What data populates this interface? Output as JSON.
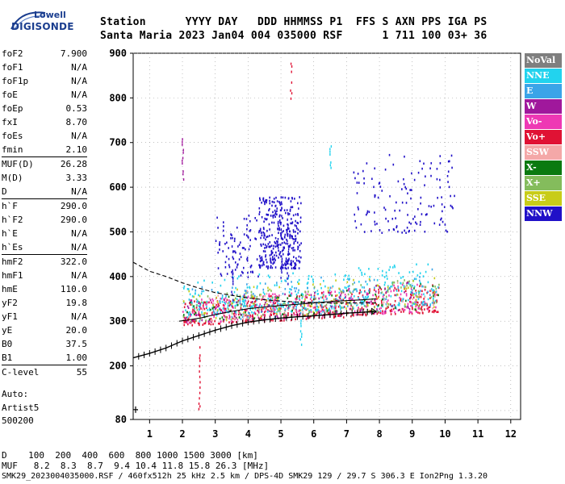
{
  "logo": {
    "line1": "Lowell",
    "line2": "DIGISONDE"
  },
  "header": {
    "row1": "Station      YYYY DAY   DDD HHMMSS P1  FFS S AXN PPS IGA PS",
    "row2": "Santa Maria 2023 Jan04 004 035000 RSF      1 711 100 03+ 36"
  },
  "params": [
    {
      "label": "foF2",
      "value": "7.900"
    },
    {
      "label": "foF1",
      "value": "N/A"
    },
    {
      "label": "foF1p",
      "value": "N/A"
    },
    {
      "label": "foE",
      "value": "N/A"
    },
    {
      "label": "foEp",
      "value": "0.53"
    },
    {
      "label": "fxI",
      "value": "8.70"
    },
    {
      "label": "foEs",
      "value": "N/A"
    },
    {
      "label": "fmin",
      "value": "2.10"
    },
    {
      "label": "MUF(D)",
      "value": "26.28",
      "sep": true
    },
    {
      "label": "M(D)",
      "value": "3.33"
    },
    {
      "label": "D",
      "value": "N/A"
    },
    {
      "label": "h`F",
      "value": "290.0",
      "sep": true
    },
    {
      "label": "h`F2",
      "value": "290.0"
    },
    {
      "label": "h`E",
      "value": "N/A"
    },
    {
      "label": "h`Es",
      "value": "N/A"
    },
    {
      "label": "hmF2",
      "value": "322.0",
      "sep": true
    },
    {
      "label": "hmF1",
      "value": "N/A"
    },
    {
      "label": "hmE",
      "value": "110.0"
    },
    {
      "label": "yF2",
      "value": "19.8"
    },
    {
      "label": "yF1",
      "value": "N/A"
    },
    {
      "label": "yE",
      "value": "20.0"
    },
    {
      "label": "B0",
      "value": "37.5"
    },
    {
      "label": "B1",
      "value": "1.00"
    },
    {
      "label": "C-level",
      "value": "55",
      "sep": true
    }
  ],
  "auto": {
    "label": "Auto:",
    "system": "Artist5",
    "version": "500200"
  },
  "legend": [
    {
      "label": "NoVal",
      "color": "#7f7f7f"
    },
    {
      "label": "NNE",
      "color": "#22d3ee"
    },
    {
      "label": "E",
      "color": "#3ba4e8"
    },
    {
      "label": "W",
      "color": "#a0189c"
    },
    {
      "label": "Vo-",
      "color": "#ee38b4"
    },
    {
      "label": "Vo+",
      "color": "#e01234"
    },
    {
      "label": "SSW",
      "color": "#f4a8a8"
    },
    {
      "label": "X-",
      "color": "#0a7a10"
    },
    {
      "label": "X+",
      "color": "#84bc5c"
    },
    {
      "label": "SSE",
      "color": "#c8cc18"
    },
    {
      "label": "NNW",
      "color": "#2010c8"
    }
  ],
  "footer": {
    "row1": "D    100  200  400  600  800 1000 1500 3000 [km]",
    "row2": "MUF   8.2  8.3  8.7  9.4 10.4 11.8 15.8 26.3 [MHz]",
    "row3": "SMK29_2023004035000.RSF / 460fx512h 25 kHz 2.5 km / DPS-4D SMK29 129 / 29.7 S 306.3 E Ion2Png 1.3.20"
  },
  "chart_data": {
    "type": "scatter",
    "xlabel": "",
    "ylabel": "",
    "xlim": [
      0.5,
      12.3
    ],
    "ylim": [
      80,
      900
    ],
    "x_ticks": [
      1,
      2,
      3,
      4,
      5,
      6,
      7,
      8,
      9,
      10,
      11,
      12
    ],
    "y_ticks": [
      100,
      200,
      300,
      400,
      500,
      600,
      700,
      800,
      900
    ],
    "y_tick_labels_shown": [
      80,
      200,
      300,
      400,
      500,
      600,
      700,
      800,
      900
    ],
    "profile_curve": {
      "x": [
        0.5,
        1.0,
        1.5,
        2.0,
        2.5,
        3.0,
        3.5,
        4.0,
        4.5,
        5.0,
        5.5,
        6.0,
        6.5,
        7.0,
        7.5,
        7.9
      ],
      "y": [
        218,
        228,
        240,
        256,
        268,
        280,
        290,
        298,
        303,
        307,
        310,
        312,
        315,
        318,
        320,
        322
      ]
    },
    "dashed_curve": {
      "x": [
        0.5,
        1.0,
        1.5,
        2.0,
        2.5,
        3.0,
        3.5,
        4.0,
        4.5,
        5.0,
        5.5,
        6.0,
        6.5,
        7.0,
        7.5,
        7.9
      ],
      "y": [
        432,
        412,
        400,
        386,
        374,
        364,
        358,
        352,
        348,
        345,
        343,
        342,
        341,
        341,
        341,
        341
      ]
    },
    "trace_curve": {
      "x": [
        1.9,
        2.2,
        2.6,
        3.0,
        3.5,
        4.0,
        4.5,
        5.0,
        5.5,
        6.0,
        6.5,
        7.0,
        7.5,
        7.9
      ],
      "y": [
        300,
        303,
        308,
        315,
        322,
        328,
        332,
        335,
        338,
        341,
        344,
        346,
        348,
        350
      ]
    },
    "clusters": [
      {
        "series": "NNW",
        "x": [
          4.3,
          5.6
        ],
        "y": [
          420,
          580
        ],
        "n": 330
      },
      {
        "series": "NNW",
        "x": [
          3.0,
          4.3
        ],
        "y": [
          400,
          540
        ],
        "n": 90
      },
      {
        "series": "NNW",
        "x": [
          7.2,
          10.3
        ],
        "y": [
          500,
          680
        ],
        "n": 140
      },
      {
        "series": "Vo+",
        "x": [
          2.0,
          9.8
        ],
        "y": [
          292,
          345
        ],
        "n": 480
      },
      {
        "series": "Vo-",
        "x": [
          2.0,
          9.8
        ],
        "y": [
          295,
          350
        ],
        "n": 230
      },
      {
        "series": "NNE",
        "x": [
          2.0,
          9.8
        ],
        "y": [
          310,
          395
        ],
        "n": 360
      },
      {
        "series": "E",
        "x": [
          2.2,
          9.6
        ],
        "y": [
          300,
          380
        ],
        "n": 140
      },
      {
        "series": "X+",
        "x": [
          2.0,
          9.8
        ],
        "y": [
          300,
          360
        ],
        "n": 150
      },
      {
        "series": "X-",
        "x": [
          2.0,
          9.8
        ],
        "y": [
          300,
          350
        ],
        "n": 60
      },
      {
        "series": "SSE",
        "x": [
          2.0,
          9.8
        ],
        "y": [
          300,
          370
        ],
        "n": 90
      },
      {
        "series": "W",
        "x": [
          2.0,
          9.0
        ],
        "y": [
          298,
          350
        ],
        "n": 90
      },
      {
        "series": "SSW",
        "x": [
          2.0,
          9.8
        ],
        "y": [
          300,
          360
        ],
        "n": 50
      }
    ],
    "vertical_streaks": [
      {
        "series": "W",
        "x": 2.0,
        "y": [
          620,
          720
        ]
      },
      {
        "series": "Vo+",
        "x": 5.3,
        "y": [
          795,
          880
        ]
      },
      {
        "series": "NNE",
        "x": 6.5,
        "y": [
          640,
          700
        ]
      },
      {
        "series": "NNW",
        "x": 5.2,
        "y": [
          380,
          560
        ]
      },
      {
        "series": "NNW",
        "x": 5.0,
        "y": [
          400,
          560
        ]
      },
      {
        "series": "NNW",
        "x": 3.5,
        "y": [
          350,
          480
        ]
      },
      {
        "series": "NNE",
        "x": 5.6,
        "y": [
          250,
          320
        ]
      },
      {
        "series": "Vo+",
        "x": 2.5,
        "y": [
          100,
          250
        ]
      }
    ]
  }
}
